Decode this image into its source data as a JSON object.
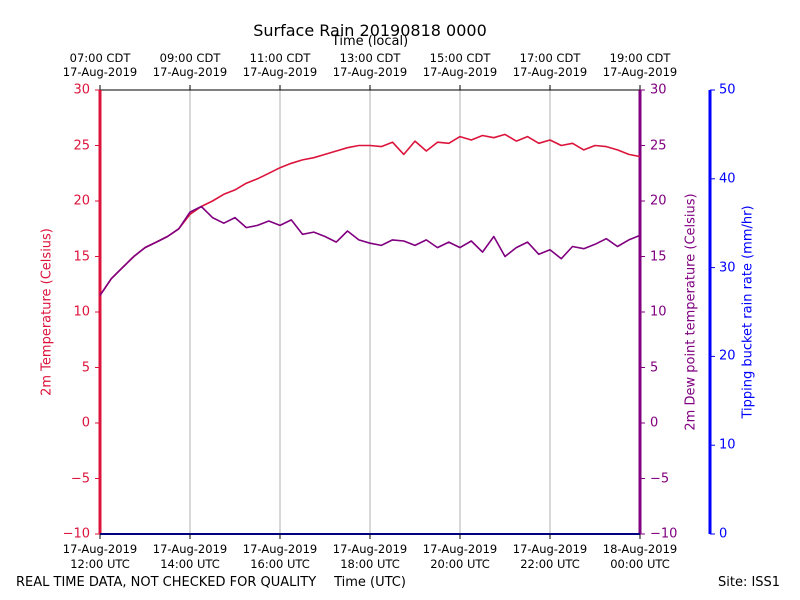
{
  "chart_data": {
    "type": "line",
    "title": "Surface Rain 20190818 0000",
    "top_xlabel": "Time (local)",
    "xlabel": "Time (UTC)",
    "ylabel_left": "2m Temperature (Celsius)",
    "ylabel_right_inner": "2m Dew point temperature (Celsius)",
    "ylabel_right_outer": "Tipping bucket rain rate (mm/hr)",
    "footer_left": "REAL TIME DATA, NOT CHECKED FOR QUALITY",
    "footer_right": "Site: ISS1",
    "x_hours_range": [
      12,
      24
    ],
    "ylim_temp": [
      -10,
      30
    ],
    "ylim_rain": [
      0,
      50
    ],
    "grid": "vertical",
    "bottom_ticks": [
      {
        "hour": 12,
        "line1": "17-Aug-2019",
        "line2": "12:00 UTC"
      },
      {
        "hour": 14,
        "line1": "17-Aug-2019",
        "line2": "14:00 UTC"
      },
      {
        "hour": 16,
        "line1": "17-Aug-2019",
        "line2": "16:00 UTC"
      },
      {
        "hour": 18,
        "line1": "17-Aug-2019",
        "line2": "18:00 UTC"
      },
      {
        "hour": 20,
        "line1": "17-Aug-2019",
        "line2": "20:00 UTC"
      },
      {
        "hour": 22,
        "line1": "17-Aug-2019",
        "line2": "22:00 UTC"
      },
      {
        "hour": 24,
        "line1": "18-Aug-2019",
        "line2": "00:00 UTC"
      }
    ],
    "top_ticks": [
      {
        "hour": 12,
        "line1": "07:00 CDT",
        "line2": "17-Aug-2019"
      },
      {
        "hour": 14,
        "line1": "09:00 CDT",
        "line2": "17-Aug-2019"
      },
      {
        "hour": 16,
        "line1": "11:00 CDT",
        "line2": "17-Aug-2019"
      },
      {
        "hour": 18,
        "line1": "13:00 CDT",
        "line2": "17-Aug-2019"
      },
      {
        "hour": 20,
        "line1": "15:00 CDT",
        "line2": "17-Aug-2019"
      },
      {
        "hour": 22,
        "line1": "17:00 CDT",
        "line2": "17-Aug-2019"
      },
      {
        "hour": 24,
        "line1": "19:00 CDT",
        "line2": "17-Aug-2019"
      }
    ],
    "left_ticks": [
      {
        "value": -10,
        "label": "−10"
      },
      {
        "value": -5,
        "label": "−5"
      },
      {
        "value": 0,
        "label": "0"
      },
      {
        "value": 5,
        "label": "5"
      },
      {
        "value": 10,
        "label": "10"
      },
      {
        "value": 15,
        "label": "15"
      },
      {
        "value": 20,
        "label": "20"
      },
      {
        "value": 25,
        "label": "25"
      },
      {
        "value": 30,
        "label": "30"
      }
    ],
    "right_ticks": [
      {
        "value": -10,
        "label": "−10"
      },
      {
        "value": -5,
        "label": "−5"
      },
      {
        "value": 0,
        "label": "0"
      },
      {
        "value": 5,
        "label": "5"
      },
      {
        "value": 10,
        "label": "10"
      },
      {
        "value": 15,
        "label": "15"
      },
      {
        "value": 20,
        "label": "20"
      },
      {
        "value": 25,
        "label": "25"
      },
      {
        "value": 30,
        "label": "30"
      }
    ],
    "rain_ticks": [
      {
        "value": 0,
        "label": "0"
      },
      {
        "value": 10,
        "label": "10"
      },
      {
        "value": 20,
        "label": "20"
      },
      {
        "value": 30,
        "label": "30"
      },
      {
        "value": 40,
        "label": "40"
      },
      {
        "value": 50,
        "label": "50"
      }
    ],
    "series": [
      {
        "name": "2m Temperature",
        "color": "#dc143c",
        "x": [
          12.0,
          12.25,
          12.5,
          12.75,
          13.0,
          13.25,
          13.5,
          13.75,
          14.0,
          14.25,
          14.5,
          14.75,
          15.0,
          15.25,
          15.5,
          15.75,
          16.0,
          16.25,
          16.5,
          16.75,
          17.0,
          17.25,
          17.5,
          17.75,
          18.0,
          18.25,
          18.5,
          18.75,
          19.0,
          19.25,
          19.5,
          19.75,
          20.0,
          20.25,
          20.5,
          20.75,
          21.0,
          21.25,
          21.5,
          21.75,
          22.0,
          22.25,
          22.5,
          22.75,
          23.0,
          23.25,
          23.5,
          23.75,
          24.0
        ],
        "values": [
          11.5,
          13.0,
          14.0,
          15.0,
          15.8,
          16.3,
          16.8,
          17.5,
          18.8,
          19.5,
          20.0,
          20.6,
          21.0,
          21.6,
          22.0,
          22.5,
          23.0,
          23.4,
          23.7,
          23.9,
          24.2,
          24.5,
          24.8,
          25.0,
          25.0,
          24.9,
          25.3,
          24.2,
          25.4,
          24.5,
          25.3,
          25.2,
          25.8,
          25.5,
          25.9,
          25.7,
          26.0,
          25.4,
          25.8,
          25.2,
          25.5,
          25.0,
          25.2,
          24.6,
          25.0,
          24.9,
          24.6,
          24.2,
          24.0
        ]
      },
      {
        "name": "2m Dew point temperature",
        "color": "#800080",
        "x": [
          12.0,
          12.25,
          12.5,
          12.75,
          13.0,
          13.25,
          13.5,
          13.75,
          14.0,
          14.25,
          14.5,
          14.75,
          15.0,
          15.25,
          15.5,
          15.75,
          16.0,
          16.25,
          16.5,
          16.75,
          17.0,
          17.25,
          17.5,
          17.75,
          18.0,
          18.25,
          18.5,
          18.75,
          19.0,
          19.25,
          19.5,
          19.75,
          20.0,
          20.25,
          20.5,
          20.75,
          21.0,
          21.25,
          21.5,
          21.75,
          22.0,
          22.25,
          22.5,
          22.75,
          23.0,
          23.25,
          23.5,
          23.75,
          24.0
        ],
        "values": [
          11.5,
          13.0,
          14.0,
          15.0,
          15.8,
          16.3,
          16.8,
          17.5,
          19.0,
          19.5,
          18.5,
          18.0,
          18.5,
          17.6,
          17.8,
          18.2,
          17.8,
          18.3,
          17.0,
          17.2,
          16.8,
          16.3,
          17.3,
          16.5,
          16.2,
          16.0,
          16.5,
          16.4,
          16.0,
          16.5,
          15.8,
          16.3,
          15.8,
          16.4,
          15.4,
          16.8,
          15.0,
          15.8,
          16.3,
          15.2,
          15.6,
          14.8,
          15.9,
          15.7,
          16.1,
          16.6,
          15.9,
          16.5,
          16.9
        ]
      }
    ]
  }
}
